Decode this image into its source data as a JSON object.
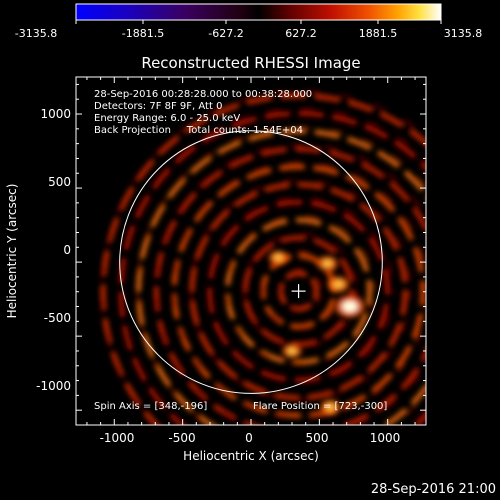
{
  "colorbar": {
    "tick_labels": [
      "-3135.8",
      "-1881.5",
      "-627.2",
      "627.2",
      "1881.5",
      "3135.8"
    ],
    "range": [
      -3135.8,
      3135.8
    ],
    "colormap": "blue-purple-red-yellow-white"
  },
  "chart_data": {
    "type": "heatmap",
    "title": "Reconstructed RHESSI Image",
    "xlabel": "Heliocentric X (arcsec)",
    "ylabel": "Heliocentric Y (arcsec)",
    "xlim": [
      -1280,
      1280
    ],
    "ylim": [
      -1100,
      1250
    ],
    "x_ticks": [
      -1000,
      -500,
      0,
      500,
      1000
    ],
    "y_ticks": [
      -1000,
      -500,
      0,
      500,
      1000
    ],
    "x_tick_labels": [
      "-1000",
      "-500",
      "0",
      "500",
      "1000"
    ],
    "y_tick_labels": [
      "-1000",
      "-500",
      "0",
      "500",
      "1000"
    ],
    "solar_limb_radius_arcsec": 960,
    "map_center_arcsec": [
      348,
      -196
    ],
    "rings": {
      "center_arcsec": [
        348,
        -196
      ],
      "spacing_arcsec": 130,
      "count": 11
    },
    "bright_spots": [
      {
        "x": 723,
        "y": -300,
        "intensity": 1.0
      },
      {
        "x": 640,
        "y": -150,
        "intensity": 0.6
      },
      {
        "x": 560,
        "y": -10,
        "intensity": 0.55
      },
      {
        "x": 300,
        "y": -600,
        "intensity": 0.5
      },
      {
        "x": 580,
        "y": -980,
        "intensity": 0.55
      },
      {
        "x": 200,
        "y": 30,
        "intensity": 0.5
      }
    ],
    "header_lines": [
      "28-Sep-2016 00:28:28.000 to 00:38:28.000",
      "Detectors: 7F 8F 9F, Att 0",
      "Energy Range: 6.0 - 25.0 keV",
      "Back Projection     Total counts: 1.54E+04"
    ],
    "footer_left": "Spin Axis = [348,-196]",
    "footer_right": "Flare Position = [723,-300]",
    "crosshair_arcsec": [
      348,
      -196
    ]
  },
  "timestamp": "28-Sep-2016 21:00",
  "colors": {
    "background": "#000000",
    "axis": "#ffffff",
    "limb": "#ffffff"
  }
}
